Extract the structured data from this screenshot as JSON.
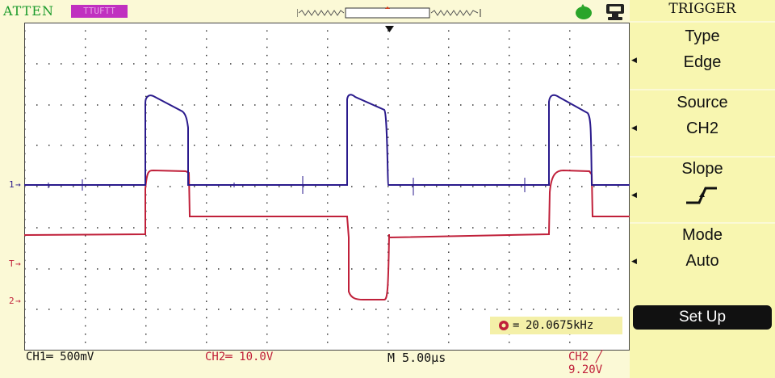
{
  "top": {
    "atten": "ATTEN",
    "timebase_badge": "TTUFTT",
    "colors": {
      "atten": "#1a9a2a",
      "badge": "#c030c0"
    }
  },
  "icons": {
    "run": "run-status-icon",
    "usb": "usb-device-icon",
    "memory": "memory-position-bar"
  },
  "channel_markers": {
    "ch1": "1",
    "trigger": "T",
    "ch2": "2"
  },
  "menu": {
    "title": "TRIGGER",
    "type_label": "Type",
    "type_value": "Edge",
    "source_label": "Source",
    "source_value": "CH2",
    "slope_label": "Slope",
    "slope_icon": "rising-edge-icon",
    "mode_label": "Mode",
    "mode_value": "Auto",
    "setup_label": "Set Up"
  },
  "frequency": "20.0675kHz",
  "status": {
    "ch1": "CH1═ 500mV",
    "ch2": "CH2═ 10.0V",
    "timebase": "M 5.00μs",
    "trigger": "CH2 ╱ 9.20V"
  },
  "colors": {
    "ch1": "#2a1a8c",
    "ch2": "#c0203a",
    "grid": "#333333",
    "menu_bg": "#f8f6b0"
  }
}
